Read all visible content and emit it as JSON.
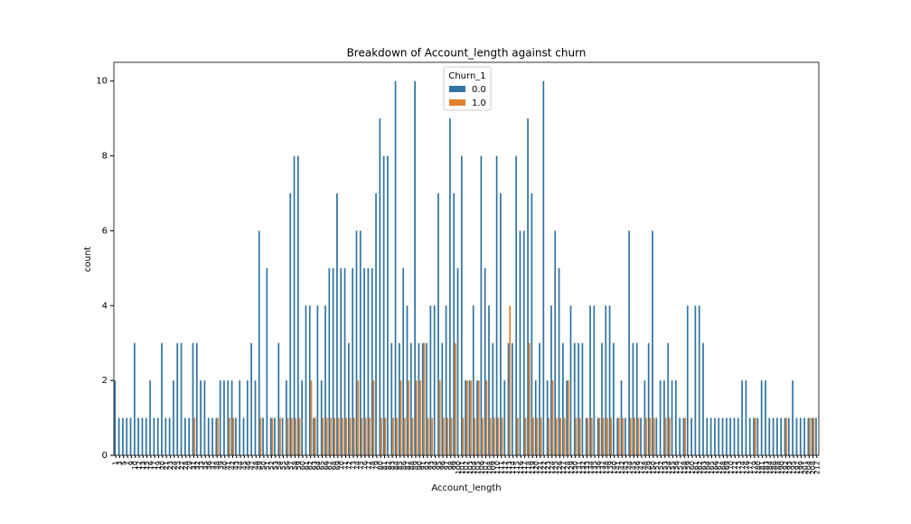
{
  "chart_data": {
    "type": "bar",
    "title": "Breakdown of Account_length against churn",
    "xlabel": "Account_length",
    "ylabel": "count",
    "legend_title": "Churn_1",
    "legend": "upper center",
    "categories": [
      "1",
      "3",
      "5",
      "7",
      "9",
      "10",
      "12",
      "13",
      "15",
      "16",
      "17",
      "19",
      "20",
      "21",
      "23",
      "24",
      "25",
      "27",
      "28",
      "29",
      "31",
      "32",
      "33",
      "35",
      "36",
      "37",
      "38",
      "39",
      "40",
      "41",
      "42",
      "43",
      "44",
      "45",
      "46",
      "47",
      "48",
      "49",
      "50",
      "51",
      "52",
      "53",
      "54",
      "55",
      "56",
      "57",
      "58",
      "59",
      "60",
      "61",
      "62",
      "63",
      "64",
      "65",
      "66",
      "67",
      "68",
      "69",
      "70",
      "71",
      "72",
      "73",
      "74",
      "75",
      "76",
      "77",
      "78",
      "79",
      "80",
      "81",
      "82",
      "83",
      "84",
      "85",
      "86",
      "87",
      "88",
      "89",
      "90",
      "91",
      "92",
      "93",
      "94",
      "95",
      "96",
      "97",
      "98",
      "99",
      "100",
      "101",
      "102",
      "103",
      "104",
      "105",
      "106",
      "107",
      "108",
      "109",
      "110",
      "111",
      "112",
      "113",
      "114",
      "115",
      "116",
      "117",
      "118",
      "119",
      "120",
      "121",
      "122",
      "123",
      "124",
      "125",
      "126",
      "127",
      "128",
      "129",
      "130",
      "131",
      "132",
      "133",
      "134",
      "135",
      "136",
      "137",
      "138",
      "139",
      "140",
      "141",
      "142",
      "143",
      "144",
      "145",
      "146",
      "147",
      "148",
      "149",
      "150",
      "151",
      "152",
      "153",
      "154",
      "155",
      "156",
      "157",
      "158",
      "159",
      "160",
      "161",
      "162",
      "163",
      "164",
      "165",
      "166",
      "167",
      "168",
      "169",
      "170",
      "172",
      "173",
      "174",
      "176",
      "177",
      "179",
      "180",
      "181",
      "183",
      "184",
      "186",
      "188",
      "190",
      "192",
      "193",
      "195",
      "197",
      "199",
      "201",
      "204",
      "208",
      "212"
    ],
    "series": [
      {
        "name": "0.0",
        "color": "#3274a1",
        "values": [
          2,
          1,
          1,
          1,
          1,
          3,
          1,
          1,
          1,
          2,
          1,
          1,
          3,
          1,
          1,
          2,
          3,
          3,
          1,
          1,
          3,
          3,
          2,
          2,
          1,
          1,
          1,
          2,
          2,
          2,
          2,
          1,
          2,
          1,
          2,
          3,
          2,
          6,
          1,
          5,
          1,
          1,
          3,
          1,
          2,
          7,
          8,
          8,
          2,
          4,
          4,
          1,
          4,
          2,
          4,
          5,
          5,
          7,
          5,
          5,
          3,
          5,
          6,
          6,
          5,
          5,
          5,
          7,
          9,
          8,
          8,
          3,
          10,
          3,
          5,
          4,
          3,
          10,
          3,
          3,
          3,
          4,
          4,
          7,
          3,
          4,
          9,
          7,
          5,
          8,
          2,
          2,
          4,
          2,
          8,
          5,
          4,
          3,
          8,
          7,
          2,
          3,
          3,
          8,
          6,
          6,
          9,
          7,
          2,
          3,
          10,
          2,
          4,
          6,
          5,
          3,
          2,
          4,
          3,
          3,
          3,
          1,
          4,
          4,
          1,
          3,
          4,
          4,
          3,
          1,
          2,
          1,
          6,
          3,
          3,
          1,
          2,
          3,
          6,
          1,
          2,
          2,
          3,
          2,
          2,
          1,
          1,
          4,
          1,
          4,
          4,
          3,
          1,
          1,
          1,
          1,
          1,
          1,
          1,
          1,
          1,
          2,
          2,
          1,
          1,
          1,
          2,
          2,
          1,
          1,
          1,
          1,
          1,
          1,
          2,
          1,
          1,
          1,
          1,
          1,
          1
        ]
      },
      {
        "name": "1.0",
        "color": "#e1812c",
        "values": [
          0,
          0,
          0,
          0,
          0,
          0,
          0,
          0,
          0,
          0,
          0,
          0,
          0,
          0,
          0,
          0,
          0,
          0,
          0,
          0,
          1,
          0,
          0,
          0,
          0,
          0,
          1,
          0,
          0,
          1,
          1,
          0,
          0,
          0,
          0,
          0,
          0,
          1,
          0,
          0,
          1,
          0,
          1,
          0,
          1,
          1,
          1,
          1,
          0,
          0,
          2,
          1,
          0,
          1,
          1,
          1,
          1,
          1,
          1,
          1,
          1,
          1,
          2,
          1,
          1,
          1,
          2,
          0,
          1,
          1,
          0,
          1,
          1,
          2,
          1,
          2,
          1,
          2,
          2,
          3,
          1,
          1,
          0,
          2,
          1,
          1,
          1,
          3,
          0,
          1,
          2,
          2,
          1,
          2,
          1,
          2,
          1,
          1,
          1,
          1,
          0,
          4,
          0,
          1,
          0,
          1,
          3,
          1,
          1,
          1,
          0,
          1,
          2,
          1,
          1,
          1,
          2,
          0,
          1,
          1,
          0,
          1,
          1,
          0,
          1,
          1,
          1,
          1,
          0,
          1,
          1,
          0,
          1,
          1,
          1,
          0,
          1,
          1,
          1,
          0,
          0,
          1,
          1,
          0,
          0,
          0,
          1,
          0,
          0,
          0,
          0,
          0,
          0,
          0,
          0,
          0,
          0,
          0,
          0,
          0,
          0,
          0,
          0,
          0,
          1,
          0,
          0,
          0,
          0,
          0,
          0,
          0,
          1,
          0,
          0,
          0,
          0,
          0,
          1,
          1,
          0
        ]
      }
    ],
    "ylim": [
      0,
      10.5
    ],
    "yticks": [
      0,
      2,
      4,
      6,
      8,
      10
    ],
    "grid": false
  }
}
